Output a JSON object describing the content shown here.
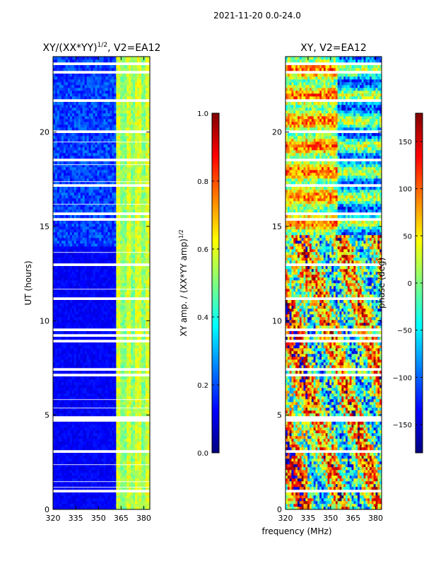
{
  "figure_title": "2021-11-20 0.0-24.0",
  "xlabel_shared": "frequency (MHz)",
  "chart_data": [
    {
      "type": "heatmap",
      "title_prefix": "XY/(XX*YY)",
      "title_exp": "1/2",
      "title_suffix": ", V2=EA12",
      "ylabel": "UT (hours)",
      "xlim": [
        320,
        384
      ],
      "ylim": [
        0,
        24
      ],
      "xticks": [
        320,
        335,
        350,
        365,
        380
      ],
      "yticks": [
        0,
        5,
        10,
        15,
        20
      ],
      "colorbar": {
        "label_prefix": "XY amp. / (XX*YY amp)",
        "label_exp": "1/2",
        "range": [
          0.0,
          1.0
        ],
        "ticks": [
          "0.0",
          "0.2",
          "0.4",
          "0.6",
          "0.8",
          "1.0"
        ],
        "tick_values": [
          0.0,
          0.2,
          0.4,
          0.6,
          0.8,
          1.0
        ]
      }
    },
    {
      "type": "heatmap",
      "title": "XY, V2=EA12",
      "xlim": [
        320,
        384
      ],
      "ylim": [
        0,
        24
      ],
      "xticks": [
        320,
        335,
        350,
        365,
        380
      ],
      "yticks": [
        0,
        5,
        10,
        15,
        20
      ],
      "colorbar": {
        "label": "phase (deg)",
        "range": [
          -180,
          180
        ],
        "ticks": [
          "150",
          "100",
          "50",
          "0",
          "−50",
          "−100",
          "−150"
        ],
        "tick_values": [
          150,
          100,
          50,
          0,
          -50,
          -100,
          -150
        ]
      }
    }
  ]
}
